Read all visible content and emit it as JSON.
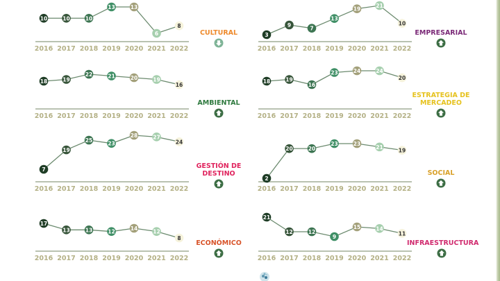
{
  "years": [
    "2016",
    "2017",
    "2018",
    "2019",
    "2020",
    "2021",
    "2022"
  ],
  "point_colors": [
    "#1f3d26",
    "#37553a",
    "#3d7552",
    "#3f8f66",
    "#a3a07a",
    "#a6cfae",
    "#f6f3dc"
  ],
  "point_text_colors": [
    "#ffffff",
    "#ffffff",
    "#ffffff",
    "#ffffff",
    "#ffffff",
    "#ffffff",
    "#333333"
  ],
  "line_color": "#6b8a6e",
  "axis_color": "#8f9e82",
  "year_label_color": "#b4b186",
  "arrow_color": "#3d6e45",
  "arrow_down_color": "#7fb497",
  "panels": [
    {
      "id": "cultural",
      "label": "CULTURAL",
      "label_color": "#ee8a2c",
      "trend": "down",
      "values": [
        10,
        10,
        10,
        13,
        13,
        6,
        8
      ]
    },
    {
      "id": "empresarial",
      "label": "EMPRESARIAL",
      "label_color": "#7b2a78",
      "trend": "up",
      "values": [
        3,
        9,
        7,
        13,
        19,
        21,
        10
      ]
    },
    {
      "id": "ambiental",
      "label": "AMBIENTAL",
      "label_color": "#2f7a3f",
      "trend": "up",
      "values": [
        18,
        19,
        22,
        21,
        20,
        19,
        16
      ]
    },
    {
      "id": "estrategia",
      "label": "ESTRATEGIA DE\nMERCADEO",
      "label_color": "#e6c21e",
      "trend": "up",
      "values": [
        18,
        19,
        16,
        23,
        24,
        24,
        20
      ]
    },
    {
      "id": "gestion",
      "label": "GESTIÓN DE\nDESTINO",
      "label_color": "#e0245e",
      "trend": "up",
      "values": [
        7,
        19,
        25,
        23,
        28,
        27,
        24
      ]
    },
    {
      "id": "social",
      "label": "SOCIAL",
      "label_color": "#d9a12a",
      "trend": "up",
      "values": [
        2,
        20,
        20,
        23,
        23,
        21,
        19
      ]
    },
    {
      "id": "economico",
      "label": "ECONÓMICO",
      "label_color": "#d8542a",
      "trend": "up",
      "values": [
        17,
        13,
        13,
        12,
        14,
        12,
        8
      ]
    },
    {
      "id": "infraestructura",
      "label": "INFRAESTRUCTURA",
      "label_color": "#d02a6e",
      "trend": "up",
      "values": [
        21,
        12,
        12,
        9,
        15,
        14,
        11
      ]
    }
  ],
  "chart_data": [
    {
      "type": "line",
      "title": "CULTURAL",
      "trend": "down",
      "x": [
        "2016",
        "2017",
        "2018",
        "2019",
        "2020",
        "2021",
        "2022"
      ],
      "values": [
        10,
        10,
        10,
        13,
        13,
        6,
        8
      ]
    },
    {
      "type": "line",
      "title": "EMPRESARIAL",
      "trend": "up",
      "x": [
        "2016",
        "2017",
        "2018",
        "2019",
        "2020",
        "2021",
        "2022"
      ],
      "values": [
        3,
        9,
        7,
        13,
        19,
        21,
        10
      ]
    },
    {
      "type": "line",
      "title": "AMBIENTAL",
      "trend": "up",
      "x": [
        "2016",
        "2017",
        "2018",
        "2019",
        "2020",
        "2021",
        "2022"
      ],
      "values": [
        18,
        19,
        22,
        21,
        20,
        19,
        16
      ]
    },
    {
      "type": "line",
      "title": "ESTRATEGIA DE MERCADEO",
      "trend": "up",
      "x": [
        "2016",
        "2017",
        "2018",
        "2019",
        "2020",
        "2021",
        "2022"
      ],
      "values": [
        18,
        19,
        16,
        23,
        24,
        24,
        20
      ]
    },
    {
      "type": "line",
      "title": "GESTIÓN DE DESTINO",
      "trend": "up",
      "x": [
        "2016",
        "2017",
        "2018",
        "2019",
        "2020",
        "2021",
        "2022"
      ],
      "values": [
        7,
        19,
        25,
        23,
        28,
        27,
        24
      ]
    },
    {
      "type": "line",
      "title": "SOCIAL",
      "trend": "up",
      "x": [
        "2016",
        "2017",
        "2018",
        "2019",
        "2020",
        "2021",
        "2022"
      ],
      "values": [
        2,
        20,
        20,
        23,
        23,
        21,
        19
      ]
    },
    {
      "type": "line",
      "title": "ECONÓMICO",
      "trend": "up",
      "x": [
        "2016",
        "2017",
        "2018",
        "2019",
        "2020",
        "2021",
        "2022"
      ],
      "values": [
        17,
        13,
        13,
        12,
        14,
        12,
        8
      ]
    },
    {
      "type": "line",
      "title": "INFRAESTRUCTURA",
      "trend": "up",
      "x": [
        "2016",
        "2017",
        "2018",
        "2019",
        "2020",
        "2021",
        "2022"
      ],
      "values": [
        21,
        12,
        12,
        9,
        15,
        14,
        11
      ]
    }
  ]
}
